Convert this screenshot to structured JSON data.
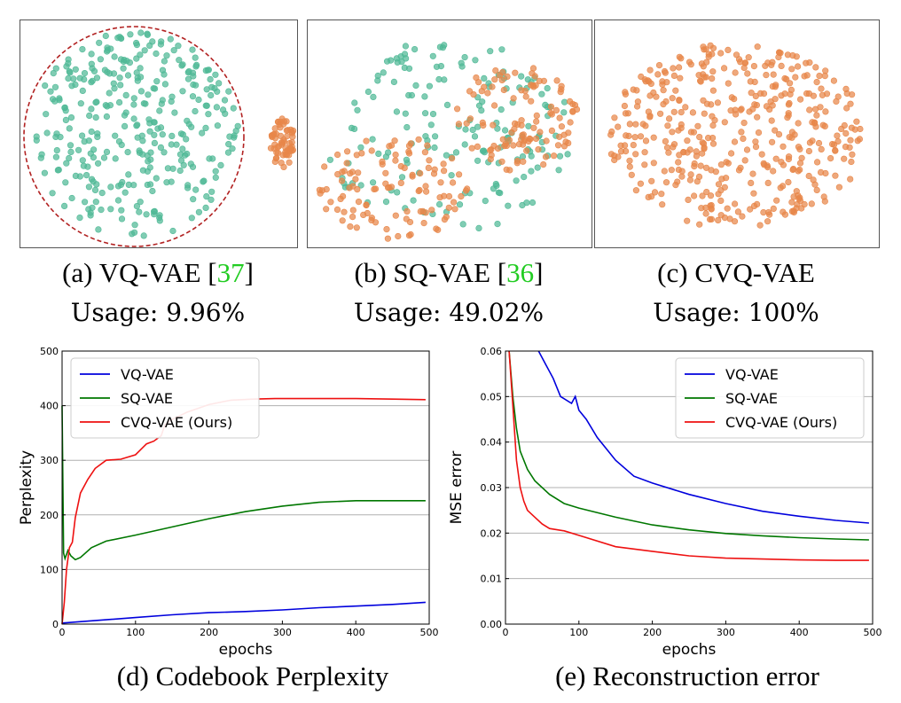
{
  "colors": {
    "green_points": "#4fb996",
    "orange_points": "#e8874a",
    "circle": "#b22222"
  },
  "scatter_panels": [
    {
      "name": "VQ-VAE",
      "cite": "37",
      "usage": "Usage: 9.96%"
    },
    {
      "name": "SQ-VAE",
      "cite": "36",
      "usage": "Usage: 49.02%"
    },
    {
      "name": "CVQ-VAE",
      "cite": "",
      "usage": "Usage: 100%"
    }
  ],
  "captions": {
    "a_prefix": "(a) VQ-VAE [",
    "a_cite": "37",
    "a_suffix": "]",
    "b_prefix": "(b) SQ-VAE [",
    "b_cite": "36",
    "b_suffix": "]",
    "c": "(c) CVQ-VAE",
    "d": "(d) Codebook Perplexity",
    "e": "(e) Reconstruction error"
  },
  "chart_data": [
    {
      "type": "line",
      "title": "",
      "xlabel": "epochs",
      "ylabel": "Perplexity",
      "xlim": [
        0,
        500
      ],
      "ylim": [
        0,
        500
      ],
      "xticks": [
        0,
        100,
        200,
        300,
        400,
        500
      ],
      "yticks": [
        0,
        100,
        200,
        300,
        400,
        500
      ],
      "ytick_labels": [
        "0",
        "100",
        "200",
        "300",
        "400",
        "500"
      ],
      "grid": "horizontal",
      "legend": "top-left",
      "series": [
        {
          "name": "VQ-VAE",
          "color": "#0000dd",
          "x": [
            0,
            10,
            30,
            60,
            100,
            150,
            200,
            250,
            300,
            350,
            400,
            450,
            495
          ],
          "y": [
            2,
            3,
            5,
            8,
            12,
            17,
            21,
            23,
            26,
            30,
            33,
            36,
            40
          ]
        },
        {
          "name": "SQ-VAE",
          "color": "#007700",
          "x": [
            0,
            2,
            4,
            8,
            12,
            18,
            25,
            40,
            60,
            100,
            150,
            200,
            250,
            300,
            350,
            400,
            450,
            495
          ],
          "y": [
            400,
            130,
            120,
            135,
            125,
            118,
            122,
            140,
            152,
            163,
            178,
            193,
            206,
            216,
            223,
            226,
            226,
            226
          ]
        },
        {
          "name": "CVQ-VAE (Ours)",
          "color": "#ee1111",
          "x": [
            0,
            3,
            6,
            10,
            14,
            18,
            25,
            35,
            45,
            60,
            80,
            100,
            115,
            125,
            135,
            140,
            150,
            170,
            200,
            230,
            260,
            290,
            300,
            350,
            400,
            450,
            495
          ],
          "y": [
            0,
            40,
            100,
            140,
            150,
            195,
            240,
            265,
            285,
            300,
            302,
            310,
            330,
            335,
            345,
            365,
            375,
            388,
            402,
            410,
            412,
            413,
            413,
            413,
            413,
            412,
            411
          ]
        }
      ]
    },
    {
      "type": "line",
      "title": "",
      "xlabel": "epochs",
      "ylabel": "MSE error",
      "xlim": [
        0,
        500
      ],
      "ylim": [
        0,
        0.06
      ],
      "xticks": [
        0,
        100,
        200,
        300,
        400,
        500
      ],
      "yticks": [
        0,
        0.01,
        0.02,
        0.03,
        0.04,
        0.05,
        0.06
      ],
      "ytick_labels": [
        "0.00",
        "0.01",
        "0.02",
        "0.03",
        "0.04",
        "0.05",
        "0.06"
      ],
      "grid": "horizontal",
      "legend": "top-right",
      "series": [
        {
          "name": "VQ-VAE",
          "color": "#0000dd",
          "x": [
            45,
            55,
            65,
            75,
            90,
            95,
            100,
            110,
            125,
            150,
            175,
            200,
            250,
            300,
            350,
            400,
            450,
            495
          ],
          "y": [
            0.06,
            0.057,
            0.054,
            0.05,
            0.0485,
            0.05,
            0.047,
            0.045,
            0.041,
            0.036,
            0.0325,
            0.031,
            0.0285,
            0.0265,
            0.0248,
            0.0237,
            0.0228,
            0.0222
          ]
        },
        {
          "name": "SQ-VAE",
          "color": "#007700",
          "x": [
            5,
            10,
            15,
            20,
            30,
            40,
            60,
            80,
            100,
            150,
            200,
            250,
            300,
            350,
            400,
            450,
            495
          ],
          "y": [
            0.06,
            0.05,
            0.043,
            0.038,
            0.034,
            0.0315,
            0.0285,
            0.0265,
            0.0255,
            0.0235,
            0.0218,
            0.0207,
            0.0199,
            0.0194,
            0.019,
            0.0187,
            0.0185
          ]
        },
        {
          "name": "CVQ-VAE (Ours)",
          "color": "#ee1111",
          "x": [
            5,
            10,
            15,
            20,
            25,
            30,
            40,
            50,
            60,
            80,
            100,
            150,
            200,
            250,
            300,
            350,
            400,
            450,
            495
          ],
          "y": [
            0.06,
            0.048,
            0.036,
            0.03,
            0.027,
            0.025,
            0.0235,
            0.022,
            0.021,
            0.0205,
            0.0195,
            0.017,
            0.016,
            0.015,
            0.0145,
            0.0143,
            0.0141,
            0.014,
            0.014
          ]
        }
      ]
    }
  ]
}
